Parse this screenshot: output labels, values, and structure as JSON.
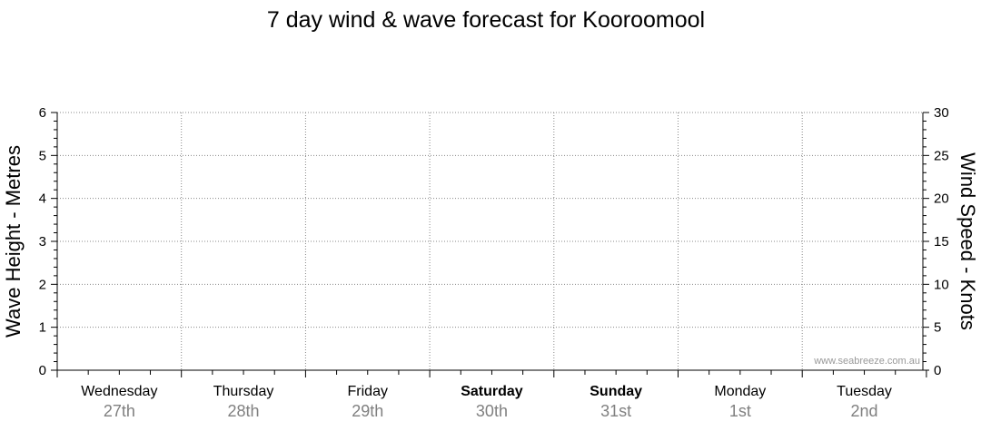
{
  "chart_data": {
    "type": "line",
    "title": "7 day wind & wave forecast for Kooroomool",
    "watermark": "www.seabreeze.com.au",
    "y_left": {
      "label": "Wave Height - Metres",
      "range": [
        0,
        6
      ],
      "ticks": [
        "0",
        "1",
        "2",
        "3",
        "4",
        "5",
        "6"
      ],
      "minor_step": 0.2
    },
    "y_right": {
      "label": "Wind Speed - Knots",
      "range": [
        0,
        30
      ],
      "ticks": [
        "0",
        "5",
        "10",
        "15",
        "20",
        "25",
        "30"
      ],
      "minor_step": 1
    },
    "days": [
      {
        "day": "Wednesday",
        "date": "27th",
        "bold": false
      },
      {
        "day": "Thursday",
        "date": "28th",
        "bold": false
      },
      {
        "day": "Friday",
        "date": "29th",
        "bold": false
      },
      {
        "day": "Saturday",
        "date": "30th",
        "bold": true
      },
      {
        "day": "Sunday",
        "date": "31st",
        "bold": true
      },
      {
        "day": "Monday",
        "date": "1st",
        "bold": false
      },
      {
        "day": "Tuesday",
        "date": "2nd",
        "bold": false
      }
    ],
    "grid": true,
    "series": []
  },
  "colors": {
    "axis": "#000000",
    "grid": "#888888",
    "date_text": "#808080",
    "watermark": "#999999"
  }
}
